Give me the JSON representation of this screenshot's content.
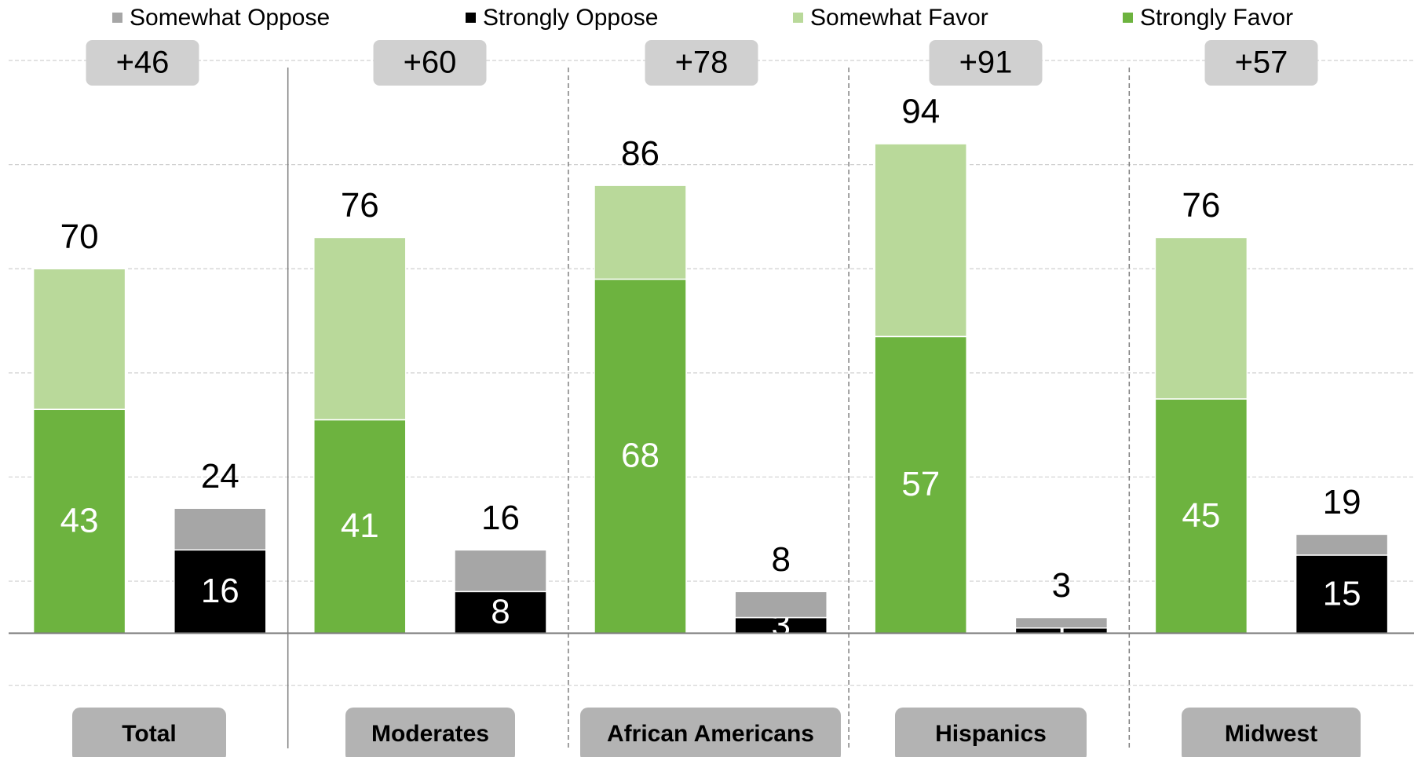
{
  "chart_data": {
    "type": "grouped-stacked-bar",
    "categories": [
      "Total",
      "Moderates",
      "African Americans",
      "Hispanics",
      "Midwest"
    ],
    "series": [
      {
        "name": "Somewhat Oppose",
        "color": "#a6a6a6",
        "stack": "oppose",
        "values": [
          8,
          8,
          5,
          2,
          4
        ]
      },
      {
        "name": "Strongly Oppose",
        "color": "#000000",
        "stack": "oppose",
        "values": [
          16,
          8,
          3,
          1,
          15
        ],
        "show_labels": true
      },
      {
        "name": "Somewhat Favor",
        "color": "#b9d99a",
        "stack": "favor",
        "values": [
          27,
          35,
          18,
          37,
          31
        ]
      },
      {
        "name": "Strongly Favor",
        "color": "#6db33f",
        "stack": "favor",
        "values": [
          43,
          41,
          68,
          57,
          45
        ],
        "show_labels": true
      }
    ],
    "totals": {
      "favor": [
        70,
        76,
        86,
        94,
        76
      ],
      "oppose": [
        24,
        16,
        8,
        3,
        19
      ]
    },
    "net": {
      "values": [
        46,
        60,
        78,
        91,
        57
      ],
      "value_labels": [
        "+46",
        "+60",
        "+78",
        "+91",
        "+57"
      ]
    },
    "ylim": [
      -20,
      110
    ],
    "yticks": [
      -10,
      10,
      30,
      50,
      70,
      90,
      110
    ],
    "grid": true
  }
}
